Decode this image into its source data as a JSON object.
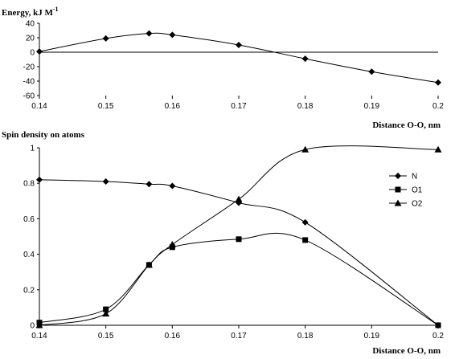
{
  "chart_data": [
    {
      "type": "line",
      "ylabel": "Energy, kJ M",
      "ylabel_sup": "-1",
      "xlabel": "Distance O-O, nm",
      "xlim": [
        0.14,
        0.2
      ],
      "ylim": [
        -60,
        40
      ],
      "x_ticks": [
        "0.14",
        "0.15",
        "0.16",
        "0.17",
        "0.18",
        "0.19",
        "0.2"
      ],
      "y_ticks": [
        "40",
        "20",
        "0",
        "-20",
        "-40",
        "-60"
      ],
      "grid": false,
      "series": [
        {
          "marker": "diamond",
          "x": [
            0.14,
            0.15,
            0.1565,
            0.16,
            0.17,
            0.18,
            0.19,
            0.2
          ],
          "y": [
            1,
            19,
            26,
            24,
            10,
            -9,
            -27,
            -42
          ]
        }
      ]
    },
    {
      "type": "line",
      "ylabel": "Spin density on atoms",
      "xlabel": "Distance O-O, nm",
      "xlim": [
        0.14,
        0.2
      ],
      "ylim": [
        0,
        1
      ],
      "x_ticks": [
        "0.14",
        "0.15",
        "0.16",
        "0.17",
        "0.18",
        "0.19",
        "0.2"
      ],
      "y_ticks": [
        "1",
        "0.8",
        "0.6",
        "0.4",
        "0.2",
        "0"
      ],
      "grid": false,
      "legend": "right",
      "series": [
        {
          "name": "N",
          "marker": "diamond",
          "x": [
            0.14,
            0.15,
            0.1565,
            0.16,
            0.17,
            0.18,
            0.2
          ],
          "y": [
            0.82,
            0.81,
            0.795,
            0.785,
            0.69,
            0.58,
            0.0
          ]
        },
        {
          "name": "O1",
          "marker": "square",
          "x": [
            0.14,
            0.15,
            0.1565,
            0.16,
            0.17,
            0.18,
            0.2
          ],
          "y": [
            0.015,
            0.09,
            0.34,
            0.44,
            0.485,
            0.48,
            0.0
          ]
        },
        {
          "name": "O2",
          "marker": "triangle",
          "x": [
            0.14,
            0.15,
            0.1565,
            0.16,
            0.17,
            0.18,
            0.2
          ],
          "y": [
            0.0,
            0.065,
            0.34,
            0.455,
            0.71,
            0.99,
            0.99
          ]
        }
      ]
    }
  ]
}
